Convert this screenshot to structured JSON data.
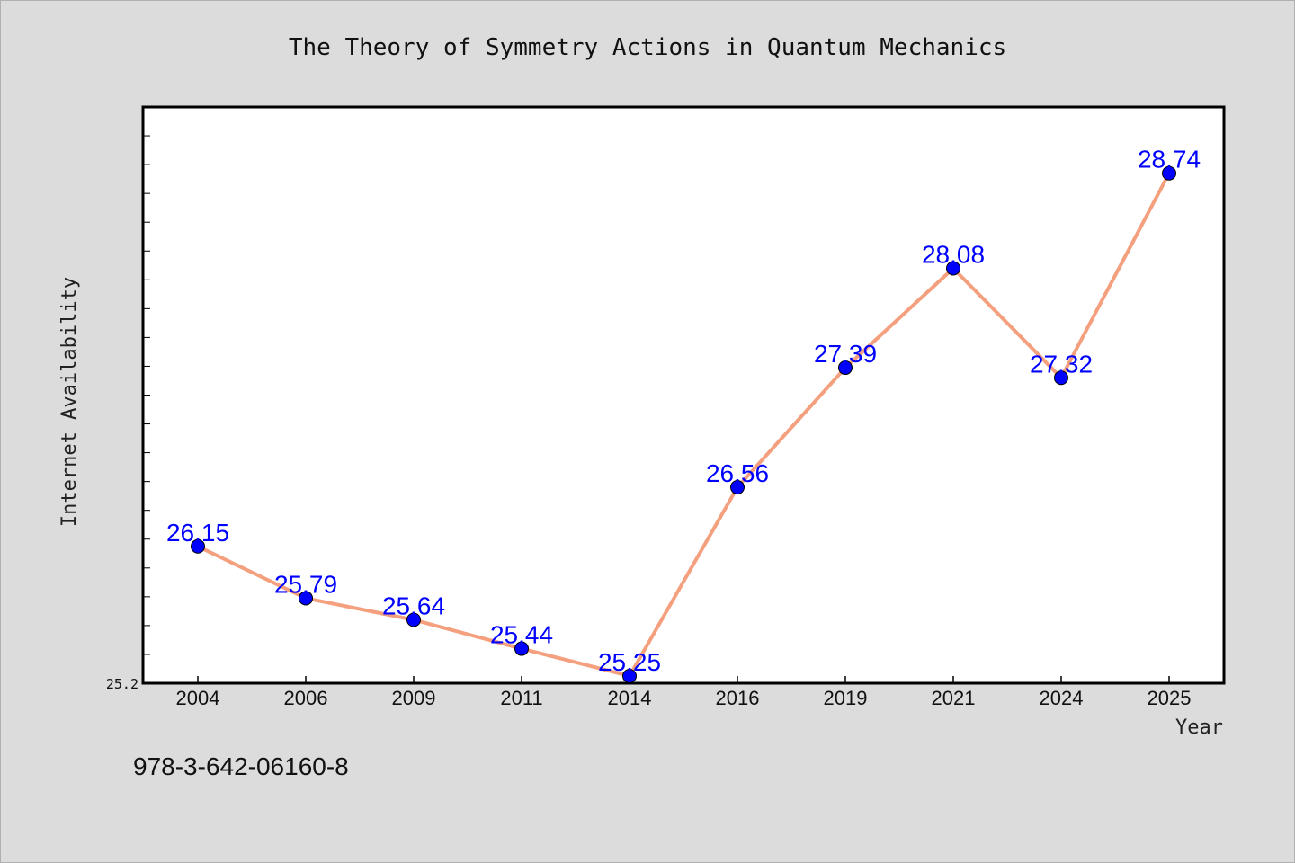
{
  "chart_data": {
    "type": "line",
    "title": "The Theory of Symmetry Actions in Quantum Mechanics",
    "xlabel": "Year",
    "ylabel": "Internet Availability",
    "categories": [
      "2004",
      "2006",
      "2009",
      "2011",
      "2014",
      "2016",
      "2019",
      "2021",
      "2024",
      "2025"
    ],
    "series": [
      {
        "values": [
          26.15,
          25.79,
          25.64,
          25.44,
          25.25,
          26.56,
          27.39,
          28.08,
          27.32,
          28.74
        ]
      }
    ],
    "data_labels": [
      "26.15",
      "25.79",
      "25.64",
      "25.44",
      "25.25",
      "26.56",
      "27.39",
      "28.08",
      "27.32",
      "28.74"
    ],
    "ylim": [
      25.2,
      29.2
    ],
    "yticks": [
      "25.2"
    ],
    "grid": false,
    "legend": "none",
    "colors": {
      "line": "#f4a07e",
      "marker": "#0000ff",
      "data_label": "#0000ff",
      "plot_background": "#ffffff",
      "page_background": "#dcdcdc"
    }
  },
  "footer": {
    "isbn": "978-3-642-06160-8"
  }
}
